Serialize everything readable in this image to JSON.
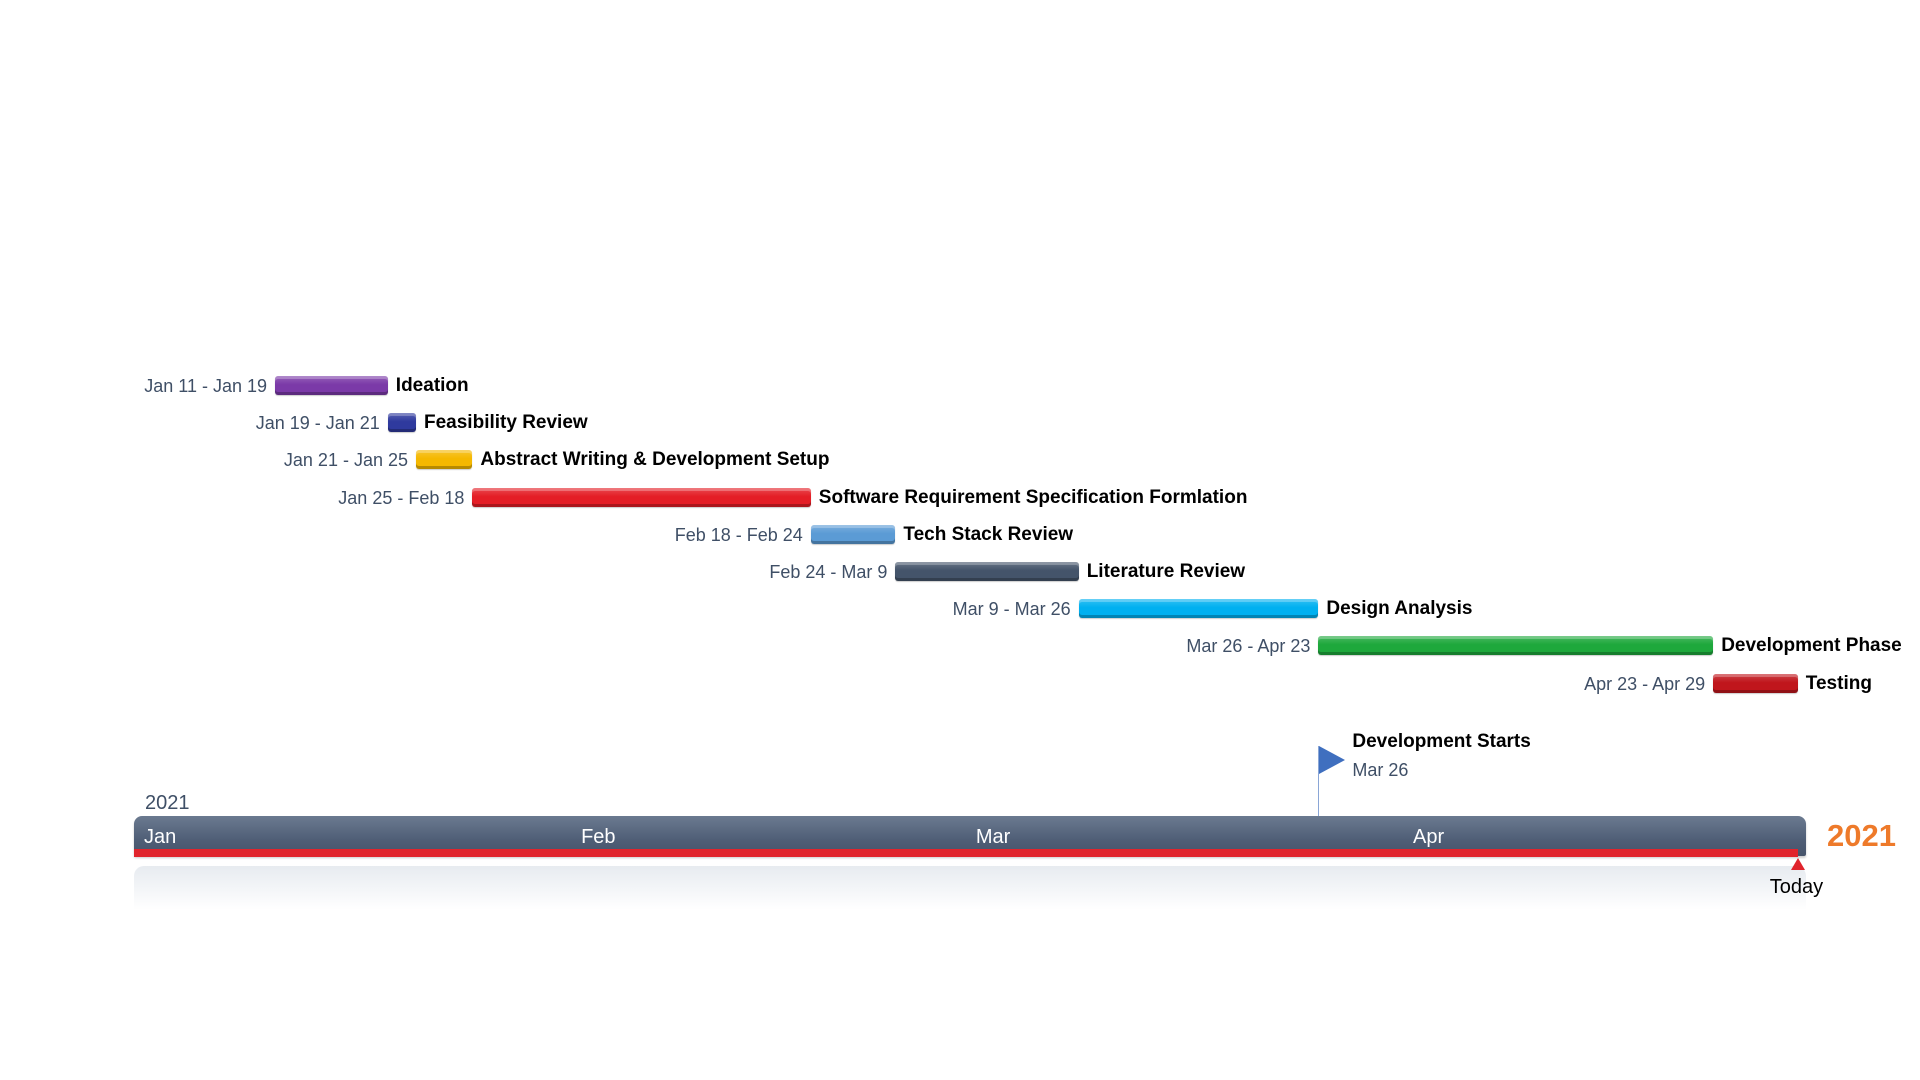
{
  "chart_data": {
    "type": "gantt",
    "timeline": {
      "year": "2021",
      "months": [
        "Jan",
        "Feb",
        "Mar",
        "Apr"
      ],
      "today_label": "Today"
    },
    "tasks": [
      {
        "name": "Ideation",
        "range_label": "Jan 11 - Jan 19",
        "start": "2021-01-11",
        "end": "2021-01-19",
        "color": "#7b3aa8"
      },
      {
        "name": "Feasibility Review",
        "range_label": "Jan 19 - Jan 21",
        "start": "2021-01-19",
        "end": "2021-01-21",
        "color": "#2f3a9e"
      },
      {
        "name": "Abstract Writing & Development Setup",
        "range_label": "Jan 21 - Jan 25",
        "start": "2021-01-21",
        "end": "2021-01-25",
        "color": "#f5b800"
      },
      {
        "name": "Software Requirement Specification Formlation",
        "range_label": "Jan 25 - Feb 18",
        "start": "2021-01-25",
        "end": "2021-02-18",
        "color": "#e41e26"
      },
      {
        "name": "Tech Stack Review",
        "range_label": "Feb 18 - Feb 24",
        "start": "2021-02-18",
        "end": "2021-02-24",
        "color": "#5b9bd5"
      },
      {
        "name": "Literature Review",
        "range_label": "Feb 24 - Mar 9",
        "start": "2021-02-24",
        "end": "2021-03-09",
        "color": "#44546a"
      },
      {
        "name": "Design Analysis",
        "range_label": "Mar 9 - Mar 26",
        "start": "2021-03-09",
        "end": "2021-03-26",
        "color": "#00b0f0"
      },
      {
        "name": "Development Phase",
        "range_label": "Mar 26 - Apr 23",
        "start": "2021-03-26",
        "end": "2021-04-23",
        "color": "#1ea83c"
      },
      {
        "name": "Testing",
        "range_label": "Apr 23 - Apr 29",
        "start": "2021-04-23",
        "end": "2021-04-29",
        "color": "#c0161c"
      }
    ],
    "milestone": {
      "title": "Development Starts",
      "date_label": "Mar 26",
      "date": "2021-03-26",
      "color": "#3f6fbf"
    },
    "today": "2021-04-29",
    "colors": {
      "axis": "#4f5e76",
      "progress": "#e0242c",
      "year_accent": "#ee7a2a"
    }
  }
}
